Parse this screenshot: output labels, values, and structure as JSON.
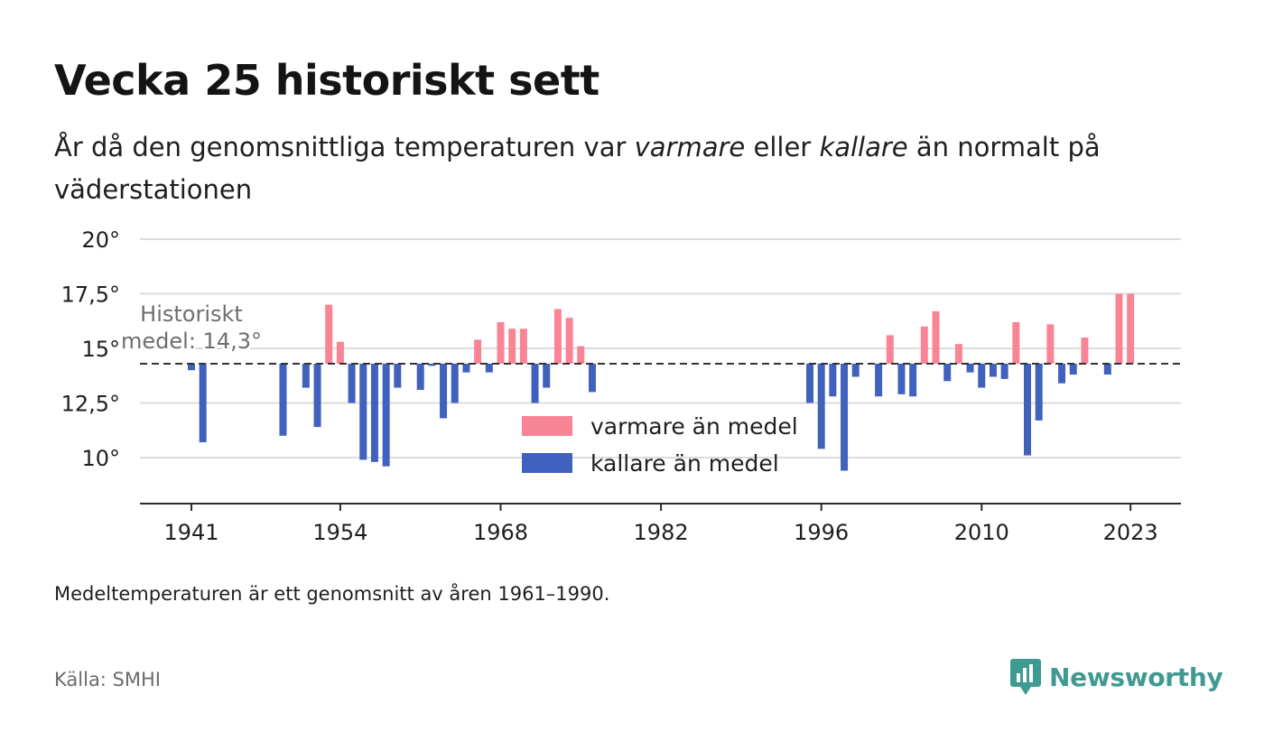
{
  "title": "Vecka 25 historiskt sett",
  "subtitle": {
    "part1": "År då den genomsnittliga temperaturen var ",
    "warm_word": "varmare",
    "part2": " eller ",
    "cold_word": "kallare",
    "part3": " än normalt på väderstationen"
  },
  "note": "Medeltemperaturen är ett genomsnitt av åren 1961–1990.",
  "source": "Källa: SMHI",
  "brand": "Newsworthy",
  "colors": {
    "warm": "#f98495",
    "cold": "#4061bd",
    "brand": "#3f9a92",
    "grid": "#dcdcdc",
    "axis": "#2b2b2b",
    "text": "#1f1f1f"
  },
  "chart_data": {
    "type": "bar",
    "baseline": 14.3,
    "baseline_label_line1": "Historiskt",
    "baseline_label_line2": "medel: 14,3°",
    "ylim": [
      8,
      20
    ],
    "yticks": [
      {
        "value": 10,
        "label": "10°"
      },
      {
        "value": 12.5,
        "label": "12,5°"
      },
      {
        "value": 15,
        "label": "15°"
      },
      {
        "value": 17.5,
        "label": "17,5°"
      },
      {
        "value": 20,
        "label": "20°"
      }
    ],
    "xlim": [
      1936.5,
      2027.5
    ],
    "xticks": [
      {
        "value": 1941,
        "label": "1941"
      },
      {
        "value": 1954,
        "label": "1954"
      },
      {
        "value": 1968,
        "label": "1968"
      },
      {
        "value": 1982,
        "label": "1982"
      },
      {
        "value": 1996,
        "label": "1996"
      },
      {
        "value": 2010,
        "label": "2010"
      },
      {
        "value": 2023,
        "label": "2023"
      }
    ],
    "legend": [
      {
        "key": "warm",
        "label": "varmare än medel"
      },
      {
        "key": "cold",
        "label": "kallare än medel"
      }
    ],
    "points": [
      {
        "year": 1941,
        "value": 14.0
      },
      {
        "year": 1942,
        "value": 10.7
      },
      {
        "year": 1949,
        "value": 11.0
      },
      {
        "year": 1951,
        "value": 13.2
      },
      {
        "year": 1952,
        "value": 11.4
      },
      {
        "year": 1953,
        "value": 17.0
      },
      {
        "year": 1954,
        "value": 15.3
      },
      {
        "year": 1955,
        "value": 12.5
      },
      {
        "year": 1956,
        "value": 9.9
      },
      {
        "year": 1957,
        "value": 9.8
      },
      {
        "year": 1958,
        "value": 9.6
      },
      {
        "year": 1959,
        "value": 13.2
      },
      {
        "year": 1961,
        "value": 13.1
      },
      {
        "year": 1962,
        "value": 14.2
      },
      {
        "year": 1963,
        "value": 11.8
      },
      {
        "year": 1964,
        "value": 12.5
      },
      {
        "year": 1965,
        "value": 13.9
      },
      {
        "year": 1966,
        "value": 15.4
      },
      {
        "year": 1967,
        "value": 13.9
      },
      {
        "year": 1968,
        "value": 16.2
      },
      {
        "year": 1969,
        "value": 15.9
      },
      {
        "year": 1970,
        "value": 15.9
      },
      {
        "year": 1971,
        "value": 12.5
      },
      {
        "year": 1972,
        "value": 13.2
      },
      {
        "year": 1973,
        "value": 16.8
      },
      {
        "year": 1974,
        "value": 16.4
      },
      {
        "year": 1975,
        "value": 15.1
      },
      {
        "year": 1976,
        "value": 13.0
      },
      {
        "year": 1995,
        "value": 12.5
      },
      {
        "year": 1996,
        "value": 10.4
      },
      {
        "year": 1997,
        "value": 12.8
      },
      {
        "year": 1998,
        "value": 9.4
      },
      {
        "year": 1999,
        "value": 13.7
      },
      {
        "year": 2001,
        "value": 12.8
      },
      {
        "year": 2002,
        "value": 15.6
      },
      {
        "year": 2003,
        "value": 12.9
      },
      {
        "year": 2004,
        "value": 12.8
      },
      {
        "year": 2005,
        "value": 16.0
      },
      {
        "year": 2006,
        "value": 16.7
      },
      {
        "year": 2007,
        "value": 13.5
      },
      {
        "year": 2008,
        "value": 15.2
      },
      {
        "year": 2009,
        "value": 13.9
      },
      {
        "year": 2010,
        "value": 13.2
      },
      {
        "year": 2011,
        "value": 13.7
      },
      {
        "year": 2012,
        "value": 13.6
      },
      {
        "year": 2013,
        "value": 16.2
      },
      {
        "year": 2014,
        "value": 10.1
      },
      {
        "year": 2015,
        "value": 11.7
      },
      {
        "year": 2016,
        "value": 16.1
      },
      {
        "year": 2017,
        "value": 13.4
      },
      {
        "year": 2018,
        "value": 13.8
      },
      {
        "year": 2019,
        "value": 15.5
      },
      {
        "year": 2021,
        "value": 13.8
      },
      {
        "year": 2022,
        "value": 17.5
      },
      {
        "year": 2023,
        "value": 17.5
      }
    ]
  }
}
